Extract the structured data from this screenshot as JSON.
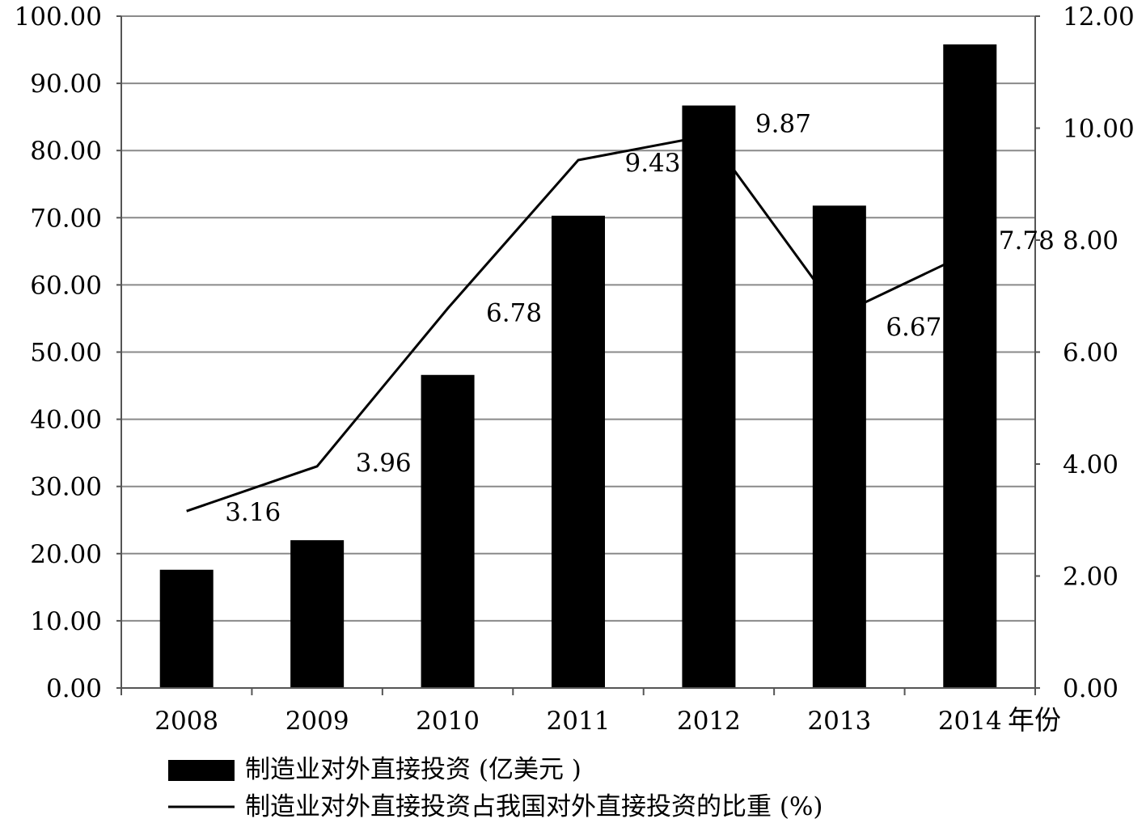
{
  "chart_data": {
    "type": "bar",
    "categories": [
      "2008",
      "2009",
      "2010",
      "2011",
      "2012",
      "2013",
      "2014"
    ],
    "x_unit_label": "年份",
    "series": [
      {
        "name": "制造业对外直接投资 (亿美元 )",
        "type": "bar",
        "axis": "left",
        "values": [
          17.6,
          22.0,
          46.6,
          70.3,
          86.7,
          71.8,
          95.8
        ]
      },
      {
        "name": "制造业对外直接投资占我国对外直接投资的比重 (%)",
        "type": "line",
        "axis": "right",
        "values": [
          3.16,
          3.96,
          6.78,
          9.43,
          9.87,
          6.67,
          7.78
        ],
        "data_labels": [
          "3.16",
          "3.96",
          "6.78",
          "9.43",
          "9.87",
          "6.67",
          "7.78"
        ]
      }
    ],
    "y_left": {
      "ylim": [
        0,
        100
      ],
      "ticks": [
        "0.00",
        "10.00",
        "20.00",
        "30.00",
        "40.00",
        "50.00",
        "60.00",
        "70.00",
        "80.00",
        "90.00",
        "100.00"
      ]
    },
    "y_right": {
      "ylim": [
        0,
        12
      ],
      "ticks": [
        "0.00",
        "2.00",
        "4.00",
        "6.00",
        "8.00",
        "10.00",
        "12.00"
      ]
    },
    "grid": true,
    "legend_position": "bottom-left",
    "colors": {
      "bar": "#000000",
      "line": "#000000",
      "grid": "#8a8a8a",
      "axis": "#555555"
    }
  }
}
